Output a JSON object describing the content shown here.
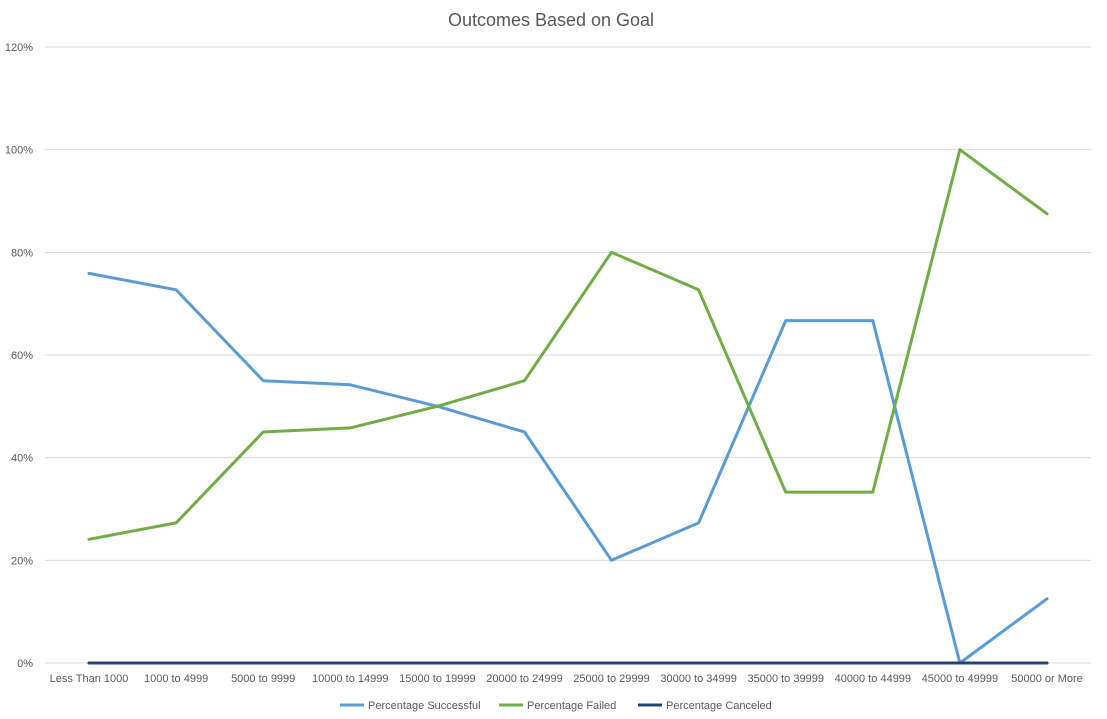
{
  "chart_data": {
    "type": "line",
    "title": "Outcomes Based on Goal",
    "xlabel": "",
    "ylabel": "",
    "categories": [
      "Less Than 1000",
      "1000 to 4999",
      "5000 to 9999",
      "10000 to 14999",
      "15000 to 19999",
      "20000 to 24999",
      "25000 to 29999",
      "30000 to 34999",
      "35000 to 39999",
      "40000 to 44999",
      "45000 to 49999",
      "50000 or More"
    ],
    "y_ticks": [
      "0%",
      "20%",
      "40%",
      "60%",
      "80%",
      "100%",
      "120%"
    ],
    "ylim": [
      0,
      120
    ],
    "grid": "horizontal",
    "legend_position": "bottom",
    "series": [
      {
        "name": "Percentage Successful",
        "color": "#5b9bd5",
        "values": [
          75.9,
          72.7,
          55,
          54.2,
          50,
          45,
          20,
          27.3,
          66.7,
          66.7,
          0,
          12.5
        ]
      },
      {
        "name": "Percentage Failed",
        "color": "#70ad47",
        "values": [
          24.1,
          27.3,
          45,
          45.8,
          50,
          55,
          80,
          72.7,
          33.3,
          33.3,
          100,
          87.5
        ]
      },
      {
        "name": "Percentage Canceled",
        "color": "#264478",
        "values": [
          0,
          0,
          0,
          0,
          0,
          0,
          0,
          0,
          0,
          0,
          0,
          0
        ]
      }
    ]
  }
}
